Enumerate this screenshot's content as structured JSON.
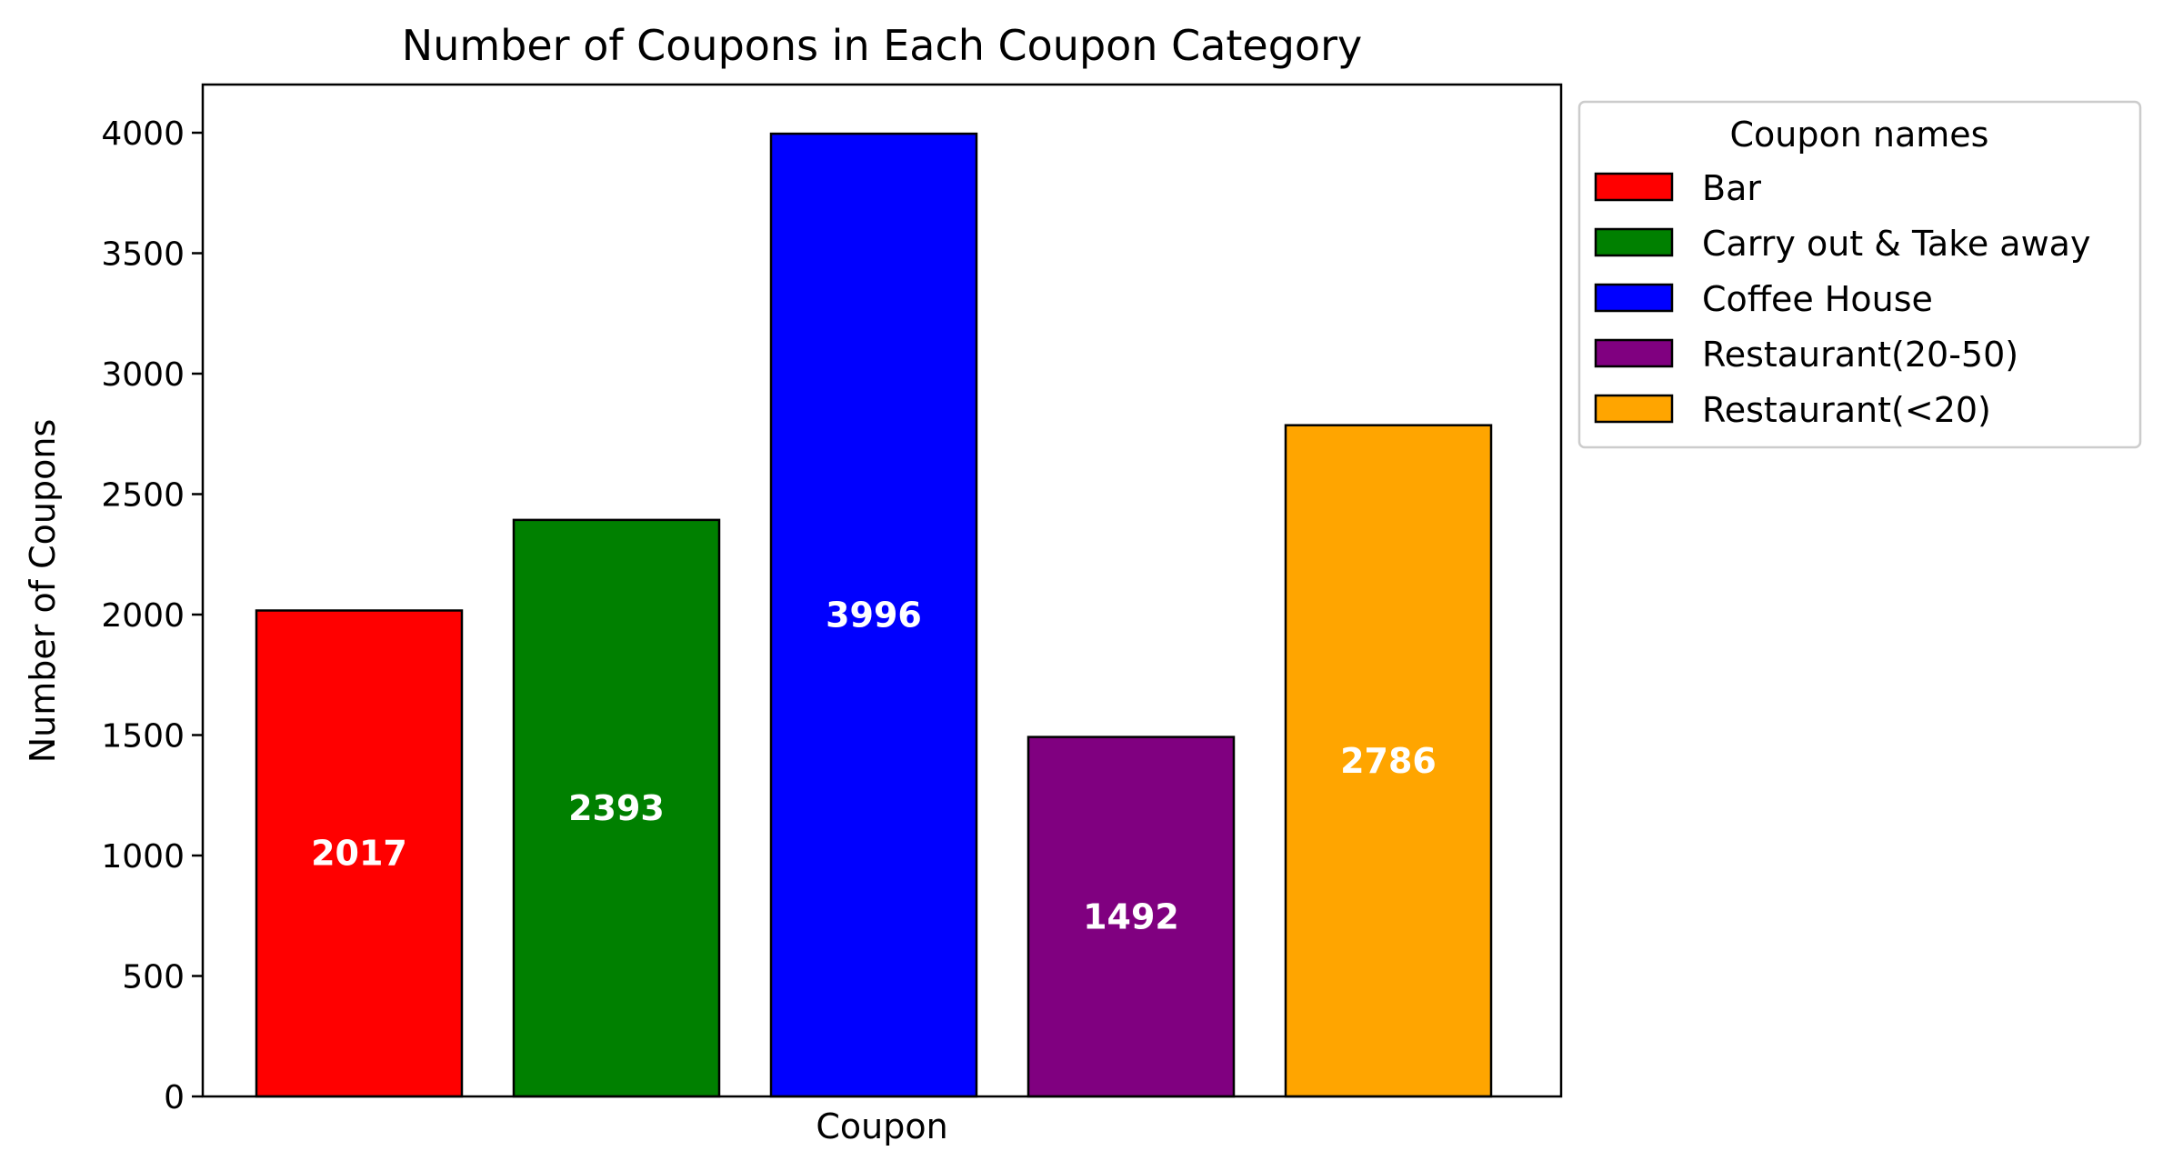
{
  "chart_data": {
    "type": "bar",
    "title": "Number of Coupons in Each Coupon Category",
    "xlabel": "Coupon",
    "ylabel": "Number of Coupons",
    "categories": [
      "Bar",
      "Carry out & Take away",
      "Coffee House",
      "Restaurant(20-50)",
      "Restaurant(<20)"
    ],
    "values": [
      2017,
      2393,
      3996,
      1492,
      2786
    ],
    "colors": [
      "#ff0000",
      "#008000",
      "#0000ff",
      "#800080",
      "#ffa500"
    ],
    "ylim": [
      0,
      4200
    ],
    "yticks": [
      0,
      500,
      1000,
      1500,
      2000,
      2500,
      3000,
      3500,
      4000
    ],
    "grid": false,
    "legend": {
      "title": "Coupon names",
      "placement": "outside-upper-right",
      "entries": [
        "Bar",
        "Carry out & Take away",
        "Coffee House",
        "Restaurant(20-50)",
        "Restaurant(<20)"
      ]
    }
  }
}
